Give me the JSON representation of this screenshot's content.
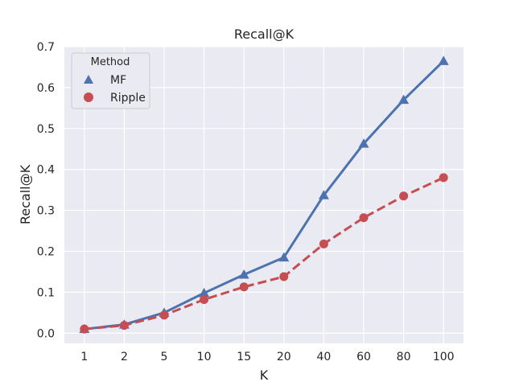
{
  "chart_data": {
    "type": "line",
    "title": "Recall@K",
    "xlabel": "K",
    "ylabel": "Recall@K",
    "categories": [
      "1",
      "2",
      "5",
      "10",
      "15",
      "20",
      "40",
      "60",
      "80",
      "100"
    ],
    "ylim": [
      -0.025,
      0.7
    ],
    "yticks": [
      "0.0",
      "0.1",
      "0.2",
      "0.3",
      "0.4",
      "0.5",
      "0.6",
      "0.7"
    ],
    "grid": true,
    "legend": {
      "title": "Method",
      "placement": "top-left"
    },
    "series": [
      {
        "name": "MF",
        "color": "#4c72b0",
        "marker": "triangle",
        "linestyle": "solid",
        "values": [
          0.01,
          0.021,
          0.05,
          0.098,
          0.143,
          0.185,
          0.337,
          0.463,
          0.57,
          0.665
        ]
      },
      {
        "name": "Ripple",
        "color": "#c44e52",
        "marker": "circle",
        "linestyle": "dashed",
        "values": [
          0.01,
          0.019,
          0.044,
          0.082,
          0.113,
          0.138,
          0.218,
          0.282,
          0.335,
          0.38
        ]
      }
    ]
  }
}
